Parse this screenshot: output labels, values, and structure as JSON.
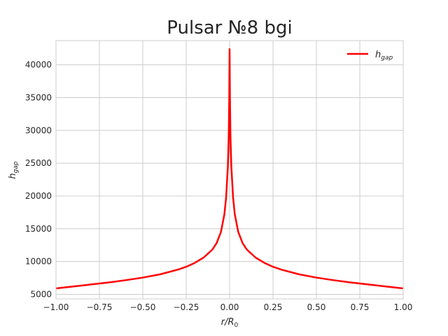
{
  "chart_data": {
    "type": "line",
    "title": "Pulsar №8 bgi",
    "xlabel": {
      "base": "r/R",
      "sub": "0"
    },
    "ylabel": {
      "base": "h",
      "sub": "gap"
    },
    "xlim": [
      -1.0,
      1.0
    ],
    "ylim": [
      4300,
      43700
    ],
    "xticks": [
      -1.0,
      -0.75,
      -0.5,
      -0.25,
      0.0,
      0.25,
      0.5,
      0.75,
      1.0
    ],
    "xtick_labels": [
      "−1.00",
      "−0.75",
      "−0.50",
      "−0.25",
      "0.00",
      "0.25",
      "0.50",
      "0.75",
      "1.00"
    ],
    "yticks": [
      5000,
      10000,
      15000,
      20000,
      25000,
      30000,
      35000,
      40000
    ],
    "ytick_labels": [
      "5000",
      "10000",
      "15000",
      "20000",
      "25000",
      "30000",
      "35000",
      "40000"
    ],
    "grid": true,
    "legend_position": "upper right",
    "series": [
      {
        "name": {
          "base": "h",
          "sub": "gap"
        },
        "color": "#ff0000",
        "points": [
          [
            -1.0,
            5900
          ],
          [
            -0.9,
            6200
          ],
          [
            -0.8,
            6500
          ],
          [
            -0.7,
            6800
          ],
          [
            -0.6,
            7150
          ],
          [
            -0.5,
            7550
          ],
          [
            -0.4,
            8050
          ],
          [
            -0.3,
            8750
          ],
          [
            -0.25,
            9200
          ],
          [
            -0.2,
            9800
          ],
          [
            -0.15,
            10600
          ],
          [
            -0.1,
            11800
          ],
          [
            -0.075,
            12800
          ],
          [
            -0.05,
            14500
          ],
          [
            -0.03,
            17200
          ],
          [
            -0.02,
            19800
          ],
          [
            -0.01,
            24500
          ],
          [
            -0.005,
            29000
          ],
          [
            -0.002,
            35000
          ],
          [
            0.0,
            42400
          ],
          [
            0.002,
            35000
          ],
          [
            0.005,
            29000
          ],
          [
            0.01,
            24500
          ],
          [
            0.02,
            19800
          ],
          [
            0.03,
            17200
          ],
          [
            0.05,
            14500
          ],
          [
            0.075,
            12800
          ],
          [
            0.1,
            11800
          ],
          [
            0.15,
            10600
          ],
          [
            0.2,
            9800
          ],
          [
            0.25,
            9200
          ],
          [
            0.3,
            8750
          ],
          [
            0.4,
            8050
          ],
          [
            0.5,
            7550
          ],
          [
            0.6,
            7150
          ],
          [
            0.7,
            6800
          ],
          [
            0.8,
            6500
          ],
          [
            0.9,
            6200
          ],
          [
            1.0,
            5900
          ]
        ]
      }
    ]
  }
}
